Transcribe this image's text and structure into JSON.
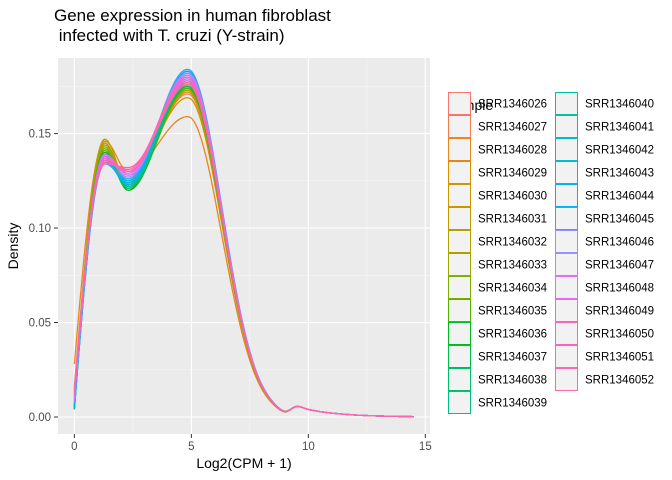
{
  "chart_data": {
    "type": "line",
    "title_line1": "Gene expression in human fibroblast",
    "title_line2": " infected with T. cruzi (Y-strain)",
    "xlabel": "Log2(CPM + 1)",
    "ylabel": "Density",
    "xlim": [
      -0.7,
      15.2
    ],
    "ylim": [
      -0.009,
      0.19
    ],
    "xticks": [
      0,
      5,
      10,
      15
    ],
    "xtick_labels": [
      "0",
      "5",
      "10",
      "15"
    ],
    "yticks": [
      0.0,
      0.05,
      0.1,
      0.15
    ],
    "ytick_labels": [
      "0.00",
      "0.05",
      "0.10",
      "0.15"
    ],
    "grid": true,
    "panel_background": "#ebebeb",
    "legend_title": "sample",
    "legend_position": "right",
    "density_curve_x": [
      0,
      0.2,
      0.4,
      0.6,
      0.8,
      1.0,
      1.2,
      1.4,
      1.6,
      1.8,
      2.0,
      2.2,
      2.4,
      2.6,
      2.8,
      3.0,
      3.2,
      3.4,
      3.6,
      3.8,
      4.0,
      4.2,
      4.4,
      4.6,
      4.8,
      5.0,
      5.2,
      5.4,
      5.6,
      5.8,
      6.0,
      6.4,
      6.8,
      7.2,
      7.6,
      8.0,
      8.5,
      9.0,
      9.5,
      10.0,
      10.5,
      11.0,
      12.0,
      13.0,
      14.0,
      14.5
    ],
    "series": [
      {
        "name": "SRR1346026",
        "color": "#F8766D",
        "peak": 0.173,
        "shoulder": 0.136,
        "trough": 0.126,
        "start": 0.012
      },
      {
        "name": "SRR1346027",
        "color": "#F17D4E",
        "peak": 0.171,
        "shoulder": 0.138,
        "trough": 0.125,
        "start": 0.014
      },
      {
        "name": "SRR1346028",
        "color": "#E7861B",
        "peak": 0.159,
        "shoulder": 0.146,
        "trough": 0.13,
        "start": 0.028
      },
      {
        "name": "SRR1346029",
        "color": "#DB8E00",
        "peak": 0.169,
        "shoulder": 0.14,
        "trough": 0.128,
        "start": 0.016
      },
      {
        "name": "SRR1346030",
        "color": "#CD9600",
        "peak": 0.172,
        "shoulder": 0.147,
        "trough": 0.123,
        "start": 0.01
      },
      {
        "name": "SRR1346031",
        "color": "#BE9C00",
        "peak": 0.174,
        "shoulder": 0.144,
        "trough": 0.124,
        "start": 0.009
      },
      {
        "name": "SRR1346032",
        "color": "#AEA200",
        "peak": 0.175,
        "shoulder": 0.143,
        "trough": 0.122,
        "start": 0.008
      },
      {
        "name": "SRR1346033",
        "color": "#99A800",
        "peak": 0.173,
        "shoulder": 0.145,
        "trough": 0.121,
        "start": 0.007
      },
      {
        "name": "SRR1346034",
        "color": "#7CAE00",
        "peak": 0.176,
        "shoulder": 0.142,
        "trough": 0.12,
        "start": 0.006
      },
      {
        "name": "SRR1346035",
        "color": "#53B400",
        "peak": 0.174,
        "shoulder": 0.141,
        "trough": 0.121,
        "start": 0.006
      },
      {
        "name": "SRR1346036",
        "color": "#00B81F",
        "peak": 0.177,
        "shoulder": 0.14,
        "trough": 0.12,
        "start": 0.005
      },
      {
        "name": "SRR1346037",
        "color": "#00BB4E",
        "peak": 0.175,
        "shoulder": 0.139,
        "trough": 0.122,
        "start": 0.005
      },
      {
        "name": "SRR1346038",
        "color": "#00BE6C",
        "peak": 0.178,
        "shoulder": 0.138,
        "trough": 0.121,
        "start": 0.004
      },
      {
        "name": "SRR1346039",
        "color": "#00C087",
        "peak": 0.176,
        "shoulder": 0.137,
        "trough": 0.122,
        "start": 0.004
      },
      {
        "name": "SRR1346040",
        "color": "#00C19F",
        "peak": 0.179,
        "shoulder": 0.136,
        "trough": 0.123,
        "start": 0.004
      },
      {
        "name": "SRR1346041",
        "color": "#00C0B5",
        "peak": 0.18,
        "shoulder": 0.135,
        "trough": 0.124,
        "start": 0.005
      },
      {
        "name": "SRR1346042",
        "color": "#00BDD0",
        "peak": 0.181,
        "shoulder": 0.134,
        "trough": 0.125,
        "start": 0.005
      },
      {
        "name": "SRR1346043",
        "color": "#00B8E7",
        "peak": 0.182,
        "shoulder": 0.136,
        "trough": 0.124,
        "start": 0.006
      },
      {
        "name": "SRR1346044",
        "color": "#00B0F6",
        "peak": 0.183,
        "shoulder": 0.135,
        "trough": 0.123,
        "start": 0.006
      },
      {
        "name": "SRR1346045",
        "color": "#35A2FF",
        "peak": 0.184,
        "shoulder": 0.134,
        "trough": 0.126,
        "start": 0.007
      },
      {
        "name": "SRR1346046",
        "color": "#9590FF",
        "peak": 0.182,
        "shoulder": 0.137,
        "trough": 0.127,
        "start": 0.008
      },
      {
        "name": "SRR1346047",
        "color": "#C77CFF",
        "peak": 0.181,
        "shoulder": 0.139,
        "trough": 0.128,
        "start": 0.01
      },
      {
        "name": "SRR1346048",
        "color": "#E76BF3",
        "peak": 0.179,
        "shoulder": 0.138,
        "trough": 0.129,
        "start": 0.011
      },
      {
        "name": "SRR1346049",
        "color": "#F563E3",
        "peak": 0.178,
        "shoulder": 0.137,
        "trough": 0.13,
        "start": 0.012
      },
      {
        "name": "SRR1346050",
        "color": "#FF62BC",
        "peak": 0.18,
        "shoulder": 0.136,
        "trough": 0.131,
        "start": 0.013
      },
      {
        "name": "SRR1346051",
        "color": "#FF6A98",
        "peak": 0.176,
        "shoulder": 0.135,
        "trough": 0.13,
        "start": 0.014
      },
      {
        "name": "SRR1346052",
        "color": "#FF65AE",
        "peak": 0.177,
        "shoulder": 0.134,
        "trough": 0.132,
        "start": 0.015
      }
    ]
  }
}
